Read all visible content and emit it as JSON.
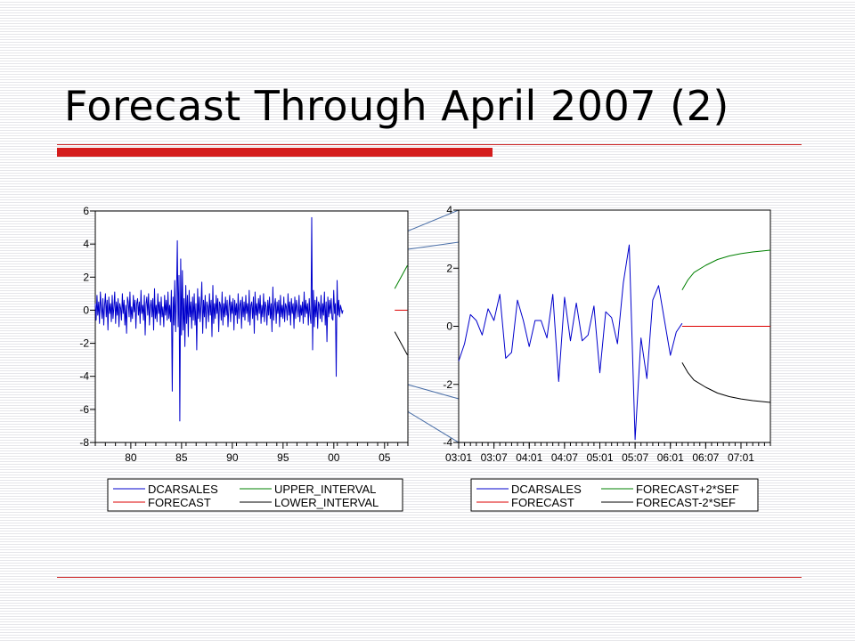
{
  "slide": {
    "title": "Forecast Through April 2007 (2)"
  },
  "colors": {
    "title_bar": "#d41c1c",
    "rule": "#cc2222",
    "actual": "#0000cc",
    "forecast": "#dd0000",
    "upper": "#008000",
    "lower": "#000000",
    "zoom_box": "#dde3ee",
    "zoom_border": "#4a6fa8"
  },
  "chart_data": [
    {
      "type": "line",
      "x_tick_labels": [
        "80",
        "85",
        "90",
        "95",
        "00",
        "05"
      ],
      "y_ticks": [
        -8,
        -6,
        -4,
        -2,
        0,
        2,
        4,
        6
      ],
      "ylim": [
        -8,
        6
      ],
      "xlim": [
        1976.5,
        2007.3
      ],
      "grid": false,
      "legend": {
        "placement": "below",
        "entries": [
          "DCARSALES",
          "UPPER_INTERVAL",
          "FORECAST",
          "LOWER_INTERVAL"
        ]
      },
      "series": [
        {
          "name": "DCARSALES",
          "x_start": 1976.5,
          "x_step": 0.0833,
          "values": [
            0.4,
            -0.6,
            0.9,
            -0.3,
            0.5,
            -0.8,
            1.1,
            0.2,
            -0.5,
            0.7,
            -0.9,
            0.3,
            1.0,
            -0.4,
            0.6,
            -1.2,
            0.8,
            -0.2,
            0.4,
            -0.7,
            0.9,
            -0.5,
            0.2,
            1.1,
            -0.8,
            0.5,
            -0.3,
            0.7,
            -1.0,
            0.4,
            0.1,
            -0.6,
            1.0,
            -0.2,
            0.6,
            -0.9,
            0.3,
            -1.4,
            0.8,
            0.5,
            -0.4,
            1.1,
            -0.7,
            0.2,
            -0.5,
            0.9,
            -0.1,
            0.6,
            -1.1,
            0.4,
            0.7,
            -0.3,
            0.5,
            -0.8,
            1.2,
            -0.2,
            0.3,
            -0.6,
            0.9,
            -1.5,
            0.4,
            0.8,
            -0.3,
            1.0,
            -0.9,
            0.2,
            0.6,
            -0.4,
            0.7,
            -1.2,
            1.3,
            -0.5,
            0.3,
            -0.7,
            1.0,
            -0.2,
            0.5,
            -0.9,
            0.8,
            -0.4,
            0.2,
            -1.0,
            0.9,
            -0.3,
            0.6,
            -0.6,
            1.1,
            -0.5,
            0.3,
            -0.7,
            1.2,
            -4.9,
            0.8,
            -0.9,
            1.8,
            -1.3,
            0.6,
            4.2,
            -1.0,
            2.1,
            -6.7,
            3.1,
            -1.5,
            2.4,
            -1.2,
            0.7,
            -2.2,
            1.5,
            -0.8,
            0.9,
            -1.6,
            1.2,
            -0.4,
            0.5,
            -1.1,
            0.8,
            -0.6,
            1.0,
            -0.9,
            0.4,
            -2.4,
            1.3,
            -0.5,
            0.8,
            -0.7,
            0.3,
            1.7,
            -1.4,
            0.6,
            -0.4,
            0.9,
            -1.1,
            0.5,
            0.2,
            -0.7,
            1.0,
            -0.3,
            0.6,
            -1.6,
            1.5,
            -0.8,
            0.4,
            -0.5,
            0.9,
            -0.2,
            0.7,
            -1.3,
            0.5,
            0.3,
            -0.6,
            1.1,
            -0.9,
            0.4,
            -0.4,
            0.8,
            -0.3,
            0.6,
            -1.0,
            0.2,
            0.9,
            -0.7,
            0.5,
            -0.2,
            0.7,
            -1.2,
            0.6,
            -0.3,
            0.4,
            -0.8,
            1.0,
            -0.5,
            0.3,
            0.6,
            -1.1,
            0.8,
            -0.4,
            0.5,
            -0.6,
            0.9,
            -0.2,
            0.4,
            -0.7,
            1.2,
            -0.9,
            0.3,
            0.5,
            -0.5,
            0.8,
            -1.4,
            1.1,
            -0.3,
            0.4,
            -0.6,
            0.7,
            -0.2,
            0.9,
            -0.8,
            0.3,
            -0.4,
            1.0,
            -0.7,
            0.5,
            0.2,
            -0.9,
            0.6,
            -0.3,
            0.8,
            -0.5,
            0.4,
            -1.3,
            1.4,
            -0.6,
            0.3,
            0.7,
            -0.8,
            0.5,
            -0.2,
            0.6,
            -1.0,
            0.9,
            -0.4,
            0.3,
            -0.5,
            0.8,
            -0.7,
            0.4,
            0.2,
            -0.6,
            1.0,
            -0.3,
            0.5,
            -0.9,
            0.7,
            -0.2,
            0.4,
            -1.1,
            0.8,
            -0.5,
            0.6,
            0.1,
            -0.4,
            0.9,
            -0.7,
            0.3,
            -0.3,
            0.5,
            -0.8,
            1.1,
            -0.4,
            0.6,
            -0.2,
            0.4,
            -0.9,
            0.7,
            -0.3,
            -0.8,
            5.6,
            -2.4,
            1.2,
            -1.0,
            0.6,
            -0.4,
            0.8,
            -1.1,
            0.5,
            0.3,
            -0.5,
            0.9,
            -0.7,
            0.4,
            -0.3,
            1.1,
            -0.9,
            0.5,
            -1.9,
            0.8,
            -0.4,
            0.6,
            -0.2,
            0.7,
            -0.5,
            -0.6,
            1.2,
            -0.2,
            0.4,
            -4.0,
            1.8,
            -0.3,
            0.6,
            -0.4,
            0.3,
            0.1,
            -0.2,
            0.0
          ]
        },
        {
          "name": "FORECAST",
          "x": [
            2006.0,
            2007.25
          ],
          "values": [
            0.0,
            0.0
          ]
        },
        {
          "name": "UPPER_INTERVAL",
          "x": [
            2006.0,
            2007.25
          ],
          "values": [
            1.3,
            2.7
          ]
        },
        {
          "name": "LOWER_INTERVAL",
          "x": [
            2006.0,
            2007.25
          ],
          "values": [
            -1.3,
            -2.7
          ]
        }
      ]
    },
    {
      "type": "line",
      "x_tick_labels": [
        "03:01",
        "03:07",
        "04:01",
        "04:07",
        "05:01",
        "05:07",
        "06:01",
        "06:07",
        "07:01"
      ],
      "y_ticks": [
        -4,
        -2,
        0,
        2,
        4
      ],
      "ylim": [
        -4,
        4
      ],
      "xlim": [
        0,
        53
      ],
      "grid": false,
      "legend": {
        "placement": "below",
        "entries": [
          "DCARSALES",
          "FORECAST+2*SEF",
          "FORECAST",
          "FORECAST-2*SEF"
        ]
      },
      "series": [
        {
          "name": "DCARSALES",
          "x_start": 0,
          "x_step": 1,
          "values": [
            -1.2,
            -0.6,
            0.4,
            0.2,
            -0.3,
            0.6,
            0.2,
            1.1,
            -1.1,
            -0.9,
            0.9,
            0.2,
            -0.7,
            0.2,
            0.2,
            -0.4,
            1.1,
            -1.9,
            1.0,
            -0.5,
            0.8,
            -0.5,
            -0.3,
            0.7,
            -1.6,
            0.5,
            0.3,
            -0.6,
            1.5,
            2.8,
            -3.9,
            -0.4,
            -1.8,
            0.9,
            1.4,
            0.2,
            -1.0,
            -0.2,
            0.1
          ]
        },
        {
          "name": "FORECAST",
          "x": [
            38,
            39,
            40,
            44,
            48,
            53
          ],
          "values": [
            0.0,
            0.0,
            0.0,
            0.0,
            0.0,
            0.0
          ]
        },
        {
          "name": "FORECAST+2*SEF",
          "x": [
            38,
            39,
            40,
            42,
            44,
            46,
            48,
            50,
            53
          ],
          "values": [
            1.25,
            1.6,
            1.85,
            2.1,
            2.3,
            2.42,
            2.5,
            2.56,
            2.62
          ]
        },
        {
          "name": "FORECAST-2*SEF",
          "x": [
            38,
            39,
            40,
            42,
            44,
            46,
            48,
            50,
            53
          ],
          "values": [
            -1.25,
            -1.6,
            -1.85,
            -2.1,
            -2.3,
            -2.42,
            -2.5,
            -2.56,
            -2.62
          ]
        }
      ]
    }
  ]
}
